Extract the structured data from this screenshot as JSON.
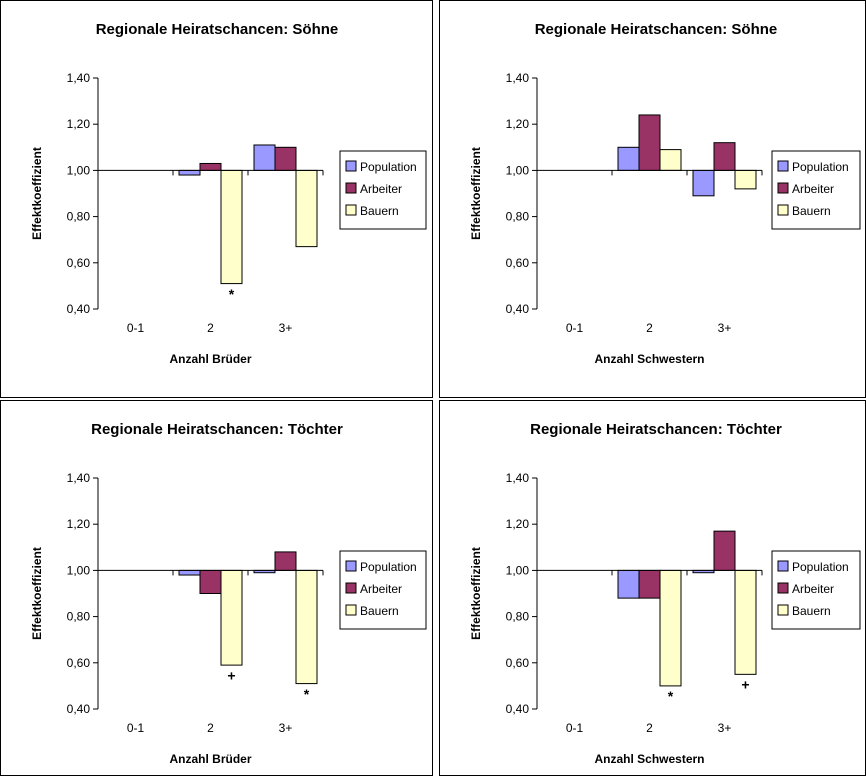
{
  "colors": {
    "population": "#9999ff",
    "arbeiter": "#993366",
    "bauern": "#ffffcc",
    "stroke": "#000000"
  },
  "chart_data": [
    {
      "type": "bar",
      "title": "Regionale Heiratschancen: Söhne",
      "xlabel": "Anzahl Brüder",
      "ylabel": "Effektkoeffizient",
      "ylim": [
        0.4,
        1.4
      ],
      "baseline": 1.0,
      "yticks": [
        "0,40",
        "0,60",
        "0,80",
        "1,00",
        "1,20",
        "1,40"
      ],
      "categories": [
        "0-1",
        "2",
        "3+"
      ],
      "series": [
        {
          "name": "Population",
          "values": [
            null,
            0.98,
            1.11
          ]
        },
        {
          "name": "Arbeiter",
          "values": [
            null,
            1.03,
            1.1
          ]
        },
        {
          "name": "Bauern",
          "values": [
            null,
            0.51,
            0.67
          ]
        }
      ],
      "legend": "right",
      "annotations": [
        {
          "text": "*",
          "category": "2",
          "y": 0.47
        }
      ]
    },
    {
      "type": "bar",
      "title": "Regionale Heiratschancen: Söhne",
      "xlabel": "Anzahl Schwestern",
      "ylabel": "Effektkoeffizient",
      "ylim": [
        0.4,
        1.4
      ],
      "baseline": 1.0,
      "yticks": [
        "0,40",
        "0,60",
        "0,80",
        "1,00",
        "1,20",
        "1,40"
      ],
      "categories": [
        "0-1",
        "2",
        "3+"
      ],
      "series": [
        {
          "name": "Population",
          "values": [
            null,
            1.1,
            0.89
          ]
        },
        {
          "name": "Arbeiter",
          "values": [
            null,
            1.24,
            1.12
          ]
        },
        {
          "name": "Bauern",
          "values": [
            null,
            1.09,
            0.92
          ]
        }
      ],
      "legend": "right",
      "annotations": []
    },
    {
      "type": "bar",
      "title": "Regionale Heiratschancen: Töchter",
      "xlabel": "Anzahl Brüder",
      "ylabel": "Effektkoeffizient",
      "ylim": [
        0.4,
        1.4
      ],
      "baseline": 1.0,
      "yticks": [
        "0,40",
        "0,60",
        "0,80",
        "1,00",
        "1,20",
        "1,40"
      ],
      "categories": [
        "0-1",
        "2",
        "3+"
      ],
      "series": [
        {
          "name": "Population",
          "values": [
            null,
            0.98,
            0.99
          ]
        },
        {
          "name": "Arbeiter",
          "values": [
            null,
            0.9,
            1.08
          ]
        },
        {
          "name": "Bauern",
          "values": [
            null,
            0.59,
            0.51
          ]
        }
      ],
      "legend": "right",
      "annotations": [
        {
          "text": "+",
          "category": "2",
          "y": 0.55
        },
        {
          "text": "*",
          "category": "3+",
          "y": 0.47
        }
      ]
    },
    {
      "type": "bar",
      "title": "Regionale Heiratschancen: Töchter",
      "xlabel": "Anzahl Schwestern",
      "ylabel": "Effektkoeffizient",
      "ylim": [
        0.4,
        1.4
      ],
      "baseline": 1.0,
      "yticks": [
        "0,40",
        "0,60",
        "0,80",
        "1,00",
        "1,20",
        "1,40"
      ],
      "categories": [
        "0-1",
        "2",
        "3+"
      ],
      "series": [
        {
          "name": "Population",
          "values": [
            null,
            0.88,
            0.99
          ]
        },
        {
          "name": "Arbeiter",
          "values": [
            null,
            0.88,
            1.17
          ]
        },
        {
          "name": "Bauern",
          "values": [
            null,
            0.5,
            0.55
          ]
        }
      ],
      "legend": "right",
      "annotations": [
        {
          "text": "*",
          "category": "2",
          "y": 0.46
        },
        {
          "text": "+",
          "category": "3+",
          "y": 0.51
        }
      ]
    }
  ]
}
